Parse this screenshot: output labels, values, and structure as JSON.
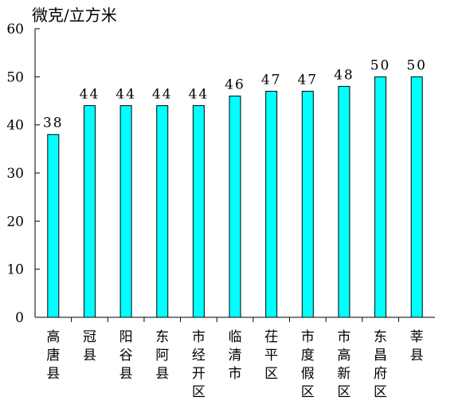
{
  "chart_data": {
    "type": "bar",
    "title": "",
    "ylabel": "微克/立方米",
    "xlabel": "",
    "categories": [
      "高唐县",
      "冠县",
      "阳谷县",
      "东阿县",
      "市经开区",
      "临清市",
      "茌平区",
      "市度假区",
      "市高新区",
      "东昌府区",
      "莘县"
    ],
    "values": [
      38,
      44,
      44,
      44,
      44,
      46,
      47,
      47,
      48,
      50,
      50
    ],
    "data_labels": [
      "38",
      "44",
      "44",
      "44",
      "44",
      "46",
      "47",
      "47",
      "48",
      "50",
      "50"
    ],
    "ylim": [
      0,
      60
    ],
    "yticks": [
      0,
      10,
      20,
      30,
      40,
      50,
      60
    ],
    "ytick_labels": [
      "0",
      "10",
      "20",
      "30",
      "40",
      "50",
      "60"
    ],
    "grid": false,
    "legend": "none",
    "colors": {
      "bar_fill": "#00FFFF",
      "bar_stroke": "#000000",
      "axis": "#000000",
      "text": "#000000"
    }
  }
}
